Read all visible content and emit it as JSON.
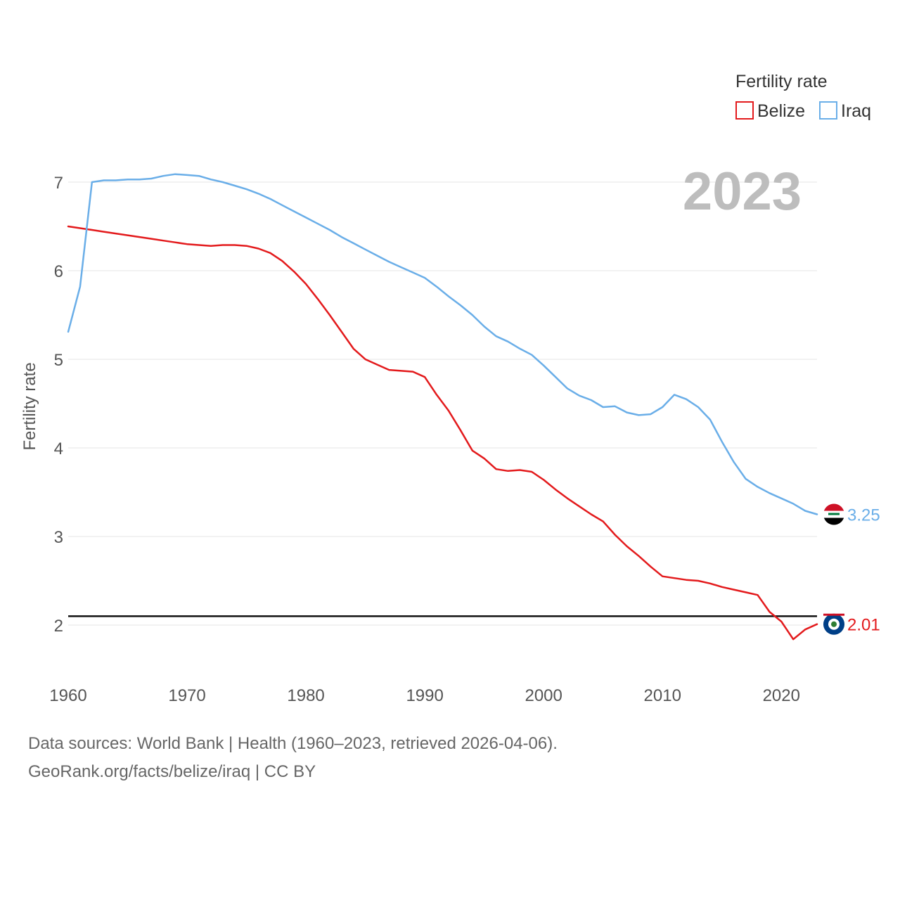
{
  "chart_data": {
    "type": "line",
    "title": "",
    "xlabel": "",
    "ylabel": "Fertility rate",
    "legend_title": "Fertility rate",
    "legend_position": "top-right",
    "year_label": "2023",
    "xlim": [
      1960,
      2023
    ],
    "ylim": [
      1.5,
      7.5
    ],
    "xticks": [
      1960,
      1970,
      1980,
      1990,
      2000,
      2010,
      2020
    ],
    "yticks": [
      2,
      3,
      4,
      5,
      6,
      7
    ],
    "reference_line": 2.1,
    "x": [
      1960,
      1961,
      1962,
      1963,
      1964,
      1965,
      1966,
      1967,
      1968,
      1969,
      1970,
      1971,
      1972,
      1973,
      1974,
      1975,
      1976,
      1977,
      1978,
      1979,
      1980,
      1981,
      1982,
      1983,
      1984,
      1985,
      1986,
      1987,
      1988,
      1989,
      1990,
      1991,
      1992,
      1993,
      1994,
      1995,
      1996,
      1997,
      1998,
      1999,
      2000,
      2001,
      2002,
      2003,
      2004,
      2005,
      2006,
      2007,
      2008,
      2009,
      2010,
      2011,
      2012,
      2013,
      2014,
      2015,
      2016,
      2017,
      2018,
      2019,
      2020,
      2021,
      2022,
      2023
    ],
    "series": [
      {
        "name": "Belize",
        "color": "#e31a1c",
        "end_value_label": "2.01",
        "values": [
          6.5,
          6.48,
          6.46,
          6.44,
          6.42,
          6.4,
          6.38,
          6.36,
          6.34,
          6.32,
          6.3,
          6.29,
          6.28,
          6.29,
          6.29,
          6.28,
          6.25,
          6.2,
          6.11,
          5.99,
          5.85,
          5.68,
          5.5,
          5.31,
          5.12,
          5.0,
          4.94,
          4.88,
          4.87,
          4.86,
          4.8,
          4.6,
          4.42,
          4.2,
          3.97,
          3.88,
          3.76,
          3.74,
          3.75,
          3.73,
          3.64,
          3.53,
          3.43,
          3.34,
          3.25,
          3.17,
          3.02,
          2.89,
          2.78,
          2.66,
          2.55,
          2.53,
          2.51,
          2.5,
          2.47,
          2.43,
          2.4,
          2.37,
          2.34,
          2.15,
          2.04,
          1.84,
          1.95,
          2.01
        ]
      },
      {
        "name": "Iraq",
        "color": "#6aaee8",
        "end_value_label": "3.25",
        "values": [
          5.31,
          5.82,
          7.0,
          7.02,
          7.02,
          7.03,
          7.03,
          7.04,
          7.07,
          7.09,
          7.08,
          7.07,
          7.03,
          7.0,
          6.96,
          6.92,
          6.87,
          6.81,
          6.74,
          6.67,
          6.6,
          6.53,
          6.46,
          6.38,
          6.31,
          6.24,
          6.17,
          6.1,
          6.04,
          5.98,
          5.92,
          5.82,
          5.71,
          5.61,
          5.5,
          5.37,
          5.26,
          5.2,
          5.12,
          5.05,
          4.93,
          4.8,
          4.67,
          4.59,
          4.54,
          4.46,
          4.47,
          4.4,
          4.37,
          4.38,
          4.46,
          4.6,
          4.55,
          4.46,
          4.32,
          4.07,
          3.84,
          3.65,
          3.56,
          3.49,
          3.43,
          3.37,
          3.29,
          3.25
        ]
      }
    ]
  },
  "footer": {
    "line1": "Data sources: World Bank | Health (1960–2023, retrieved 2026-04-06).",
    "line2": "GeoRank.org/facts/belize/iraq | CC BY"
  }
}
